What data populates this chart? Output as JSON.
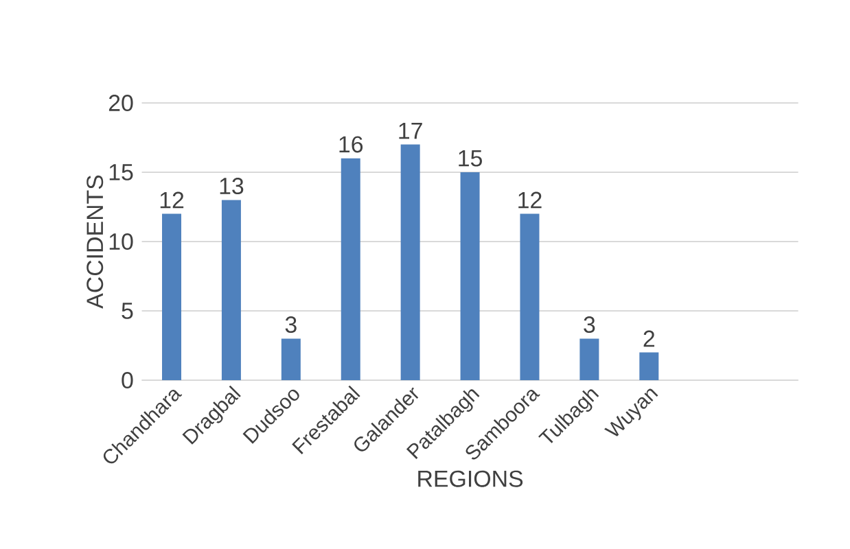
{
  "chart_data": {
    "type": "bar",
    "xlabel": "REGIONS",
    "ylabel": "ACCIDENTS",
    "categories": [
      "Chandhara",
      "Dragbal",
      "Dudsoo",
      "Frestabal",
      "Galander",
      "Patalbagh",
      "Samboora",
      "Tulbagh",
      "Wuyan",
      null,
      null
    ],
    "values": [
      12,
      13,
      3,
      16,
      17,
      15,
      12,
      3,
      2,
      null,
      null
    ],
    "color": "#4f81bd",
    "ylim": [
      0,
      20
    ],
    "yticks": [
      0,
      5,
      10,
      15,
      20
    ],
    "grid": "y",
    "data_labels": true
  }
}
